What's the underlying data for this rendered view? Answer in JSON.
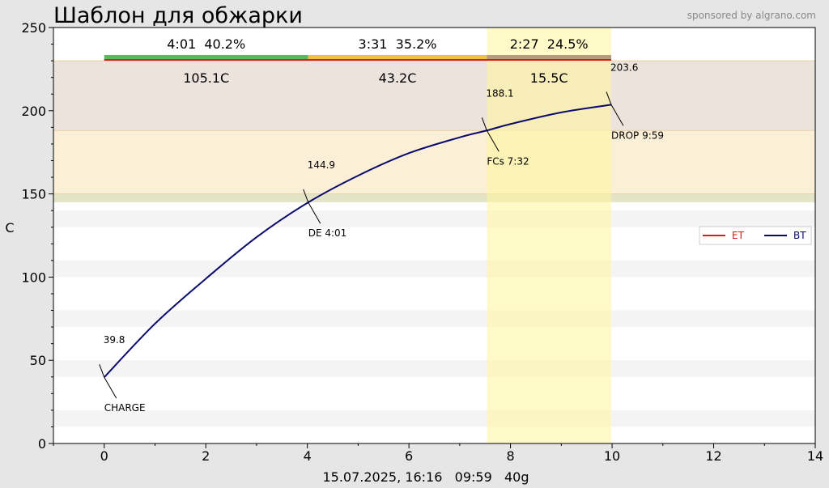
{
  "chart_data": {
    "type": "line",
    "title": "Шаблон для обжарки",
    "sponsor": "sponsored by algrano.com",
    "ylabel": "C",
    "footer": "15.07.2025, 16:16   09:59   40g",
    "xlim": [
      -1,
      14
    ],
    "ylim": [
      0,
      250
    ],
    "xticks": [
      0,
      2,
      4,
      6,
      8,
      10,
      12,
      14
    ],
    "yticks": [
      0,
      50,
      100,
      150,
      200,
      250
    ],
    "legend_position": "right",
    "series": [
      {
        "name": "ET",
        "color": "#d62020",
        "x": [],
        "y": []
      },
      {
        "name": "BT",
        "color": "#0a0a6e",
        "x": [
          0,
          1,
          2,
          3,
          4.0167,
          5,
          6,
          7,
          7.5333,
          8,
          9,
          9.9833
        ],
        "y": [
          39.8,
          72,
          99,
          124,
          144.9,
          161,
          174.5,
          184,
          188.1,
          192,
          199,
          203.6
        ]
      }
    ],
    "bands": [
      {
        "y0": 188.1,
        "y1": 230,
        "color": "#ede3dd"
      },
      {
        "y0": 150,
        "y1": 188.1,
        "color": "#fcefd8"
      },
      {
        "y0": 145,
        "y1": 150,
        "color": "#e4e4c8"
      }
    ],
    "fc_region": {
      "x0": 7.5333,
      "x1": 9.9833
    },
    "annotations": [
      {
        "x": 0,
        "y": 39.8,
        "value": "39.8",
        "label": "CHARGE"
      },
      {
        "x": 4.0167,
        "y": 144.9,
        "value": "144.9",
        "label": "DE 4:01"
      },
      {
        "x": 7.5333,
        "y": 188.1,
        "value": "188.1",
        "label": "FCs 7:32"
      },
      {
        "x": 9.9833,
        "y": 203.6,
        "value": "203.6",
        "label": "DROP 9:59"
      }
    ],
    "phases": [
      {
        "x0": 0,
        "x1": 4.0167,
        "duration": "4:01  40.2%",
        "delta": "105.1C",
        "color": "#5cb85c"
      },
      {
        "x0": 4.0167,
        "x1": 7.5333,
        "duration": "3:31  35.2%",
        "delta": "43.2C",
        "color": "#f0c040"
      },
      {
        "x0": 7.5333,
        "x1": 9.9833,
        "duration": "2:27  24.5%",
        "delta": "15.5C",
        "color": "#b89a80"
      }
    ]
  }
}
